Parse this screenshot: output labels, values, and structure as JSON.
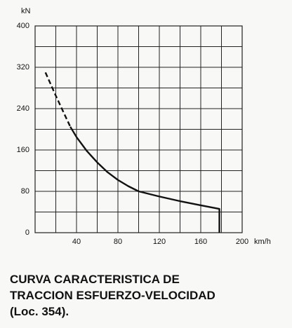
{
  "chart_data": {
    "type": "line",
    "ylabel": "kN",
    "xlabel": "km/h",
    "xlim": [
      0,
      200
    ],
    "ylim": [
      0,
      400
    ],
    "xticks": [
      40,
      80,
      120,
      160,
      200
    ],
    "yticks": [
      0,
      80,
      160,
      240,
      320,
      400
    ],
    "xminorticks": [
      20,
      60,
      100,
      140,
      180
    ],
    "yminorticks": [
      40,
      120,
      200,
      280,
      360
    ],
    "grid": true,
    "series": [
      {
        "color": "#111111",
        "dashed": true,
        "x": [
          10,
          20,
          30,
          34
        ],
        "values": [
          310,
          265,
          222,
          205
        ]
      },
      {
        "color": "#111111",
        "dashed": false,
        "x": [
          34,
          40,
          50,
          60,
          70,
          80,
          90,
          100,
          120,
          140,
          160,
          178,
          178
        ],
        "values": [
          205,
          185,
          158,
          136,
          117,
          102,
          90,
          80,
          70,
          61,
          53,
          46,
          0
        ]
      }
    ],
    "caption": [
      "CURVA CARACTERISTICA DE",
      "TRACCION ESFUERZO-VELOCIDAD",
      "(Loc. 354)."
    ]
  }
}
